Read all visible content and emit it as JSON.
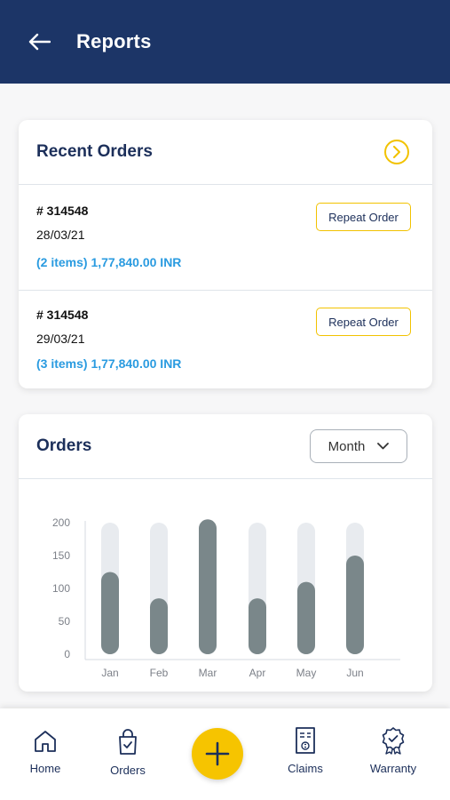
{
  "header": {
    "title": "Reports"
  },
  "recent_orders": {
    "title": "Recent Orders",
    "orders": [
      {
        "id": "# 314548",
        "date": "28/03/21",
        "amount": "(2 items) 1,77,840.00 INR",
        "action": "Repeat Order"
      },
      {
        "id": "# 314548",
        "date": "29/03/21",
        "amount": "(3 items) 1,77,840.00 INR",
        "action": "Repeat Order"
      }
    ]
  },
  "orders_chart": {
    "title": "Orders",
    "period_select": "Month"
  },
  "chart_data": {
    "type": "bar",
    "categories": [
      "Jan",
      "Feb",
      "Mar",
      "Apr",
      "May",
      "Jun"
    ],
    "values": [
      125,
      85,
      205,
      85,
      110,
      150
    ],
    "max_track": 200,
    "yticks": [
      "0",
      "50",
      "100",
      "150",
      "200"
    ],
    "ylim": [
      0,
      200
    ],
    "colors": {
      "bar": "#7a878a",
      "track": "#e8ebef"
    }
  },
  "nav": {
    "home": "Home",
    "orders": "Orders",
    "claims": "Claims",
    "warranty": "Warranty"
  },
  "colors": {
    "primary": "#1c3567",
    "accent": "#f6c400",
    "link": "#2a9be0"
  }
}
